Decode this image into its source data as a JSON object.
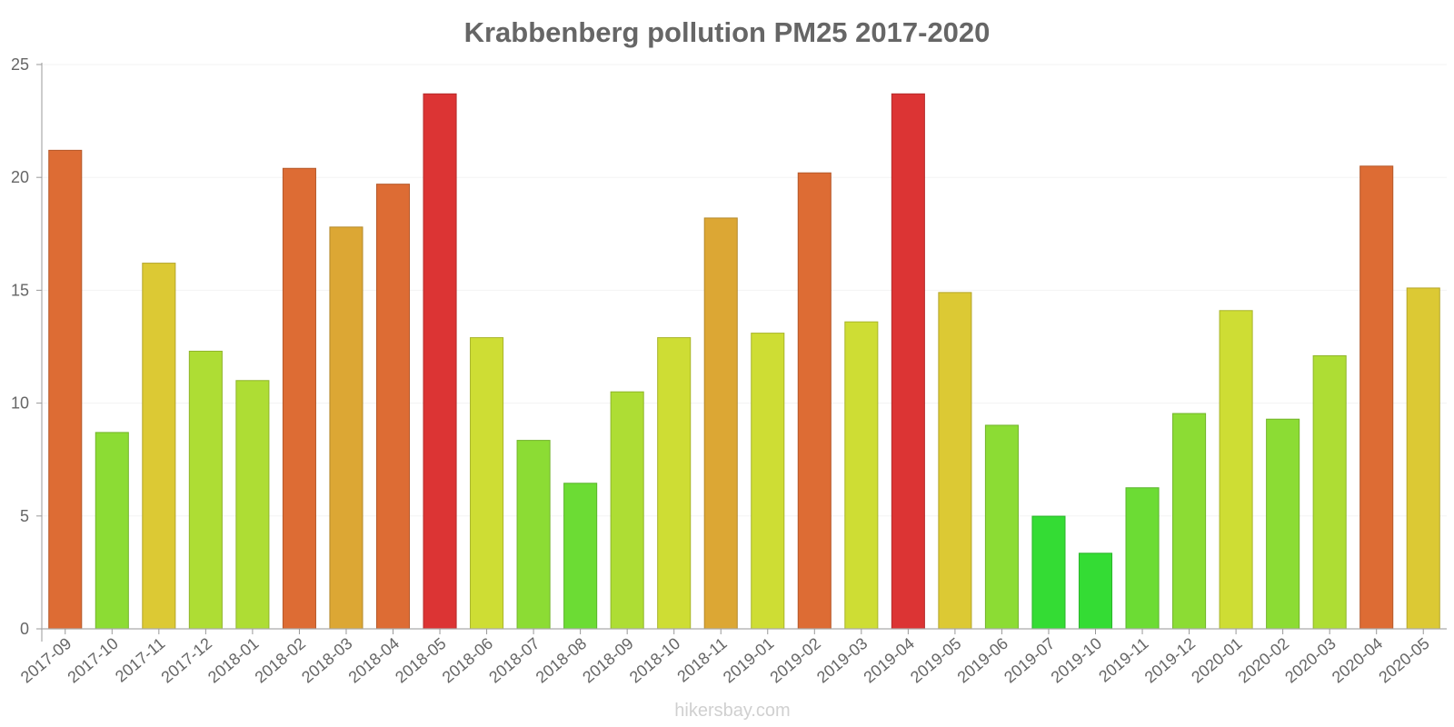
{
  "chart_data": {
    "type": "bar",
    "title": "Krabbenberg pollution PM25 2017-2020",
    "xlabel": "",
    "ylabel": "",
    "ylim": [
      0,
      25
    ],
    "yticks": [
      "0",
      "5",
      "10",
      "15",
      "20",
      "25"
    ],
    "categories": [
      "2017-09",
      "2017-10",
      "2017-11",
      "2017-12",
      "2018-01",
      "2018-02",
      "2018-03",
      "2018-04",
      "2018-05",
      "2018-06",
      "2018-07",
      "2018-08",
      "2018-09",
      "2018-10",
      "2018-11",
      "2019-01",
      "2019-02",
      "2019-03",
      "2019-04",
      "2019-05",
      "2019-06",
      "2019-07",
      "2019-10",
      "2019-11",
      "2019-12",
      "2020-01",
      "2020-02",
      "2020-03",
      "2020-04",
      "2020-05"
    ],
    "values": [
      21.2,
      8.7,
      16.2,
      12.3,
      11,
      20.4,
      17.8,
      19.7,
      23.7,
      12.9,
      8.35,
      6.45,
      10.5,
      12.9,
      18.2,
      13.1,
      20.2,
      13.6,
      23.7,
      14.9,
      9.02,
      4.99,
      3.35,
      6.25,
      9.54,
      14.1,
      9.29,
      12.1,
      20.5,
      15.1
    ],
    "colors": [
      "#dd6c34",
      "#8cdc34",
      "#dcc934",
      "#aedd34",
      "#aedd34",
      "#dd6c34",
      "#dca734",
      "#dd6c34",
      "#dc3434",
      "#cedd34",
      "#8cdc34",
      "#6cdc34",
      "#aedd34",
      "#cedd34",
      "#dca734",
      "#cedd34",
      "#dd6c34",
      "#cedd34",
      "#dc3434",
      "#dcc934",
      "#8cdc34",
      "#34dc34",
      "#34dc34",
      "#6cdc34",
      "#8cdc34",
      "#cedd34",
      "#8cdc34",
      "#aedd34",
      "#dd6c34",
      "#dcc934"
    ],
    "grid": true,
    "legend": "none"
  },
  "watermark": "hikersbay.com"
}
